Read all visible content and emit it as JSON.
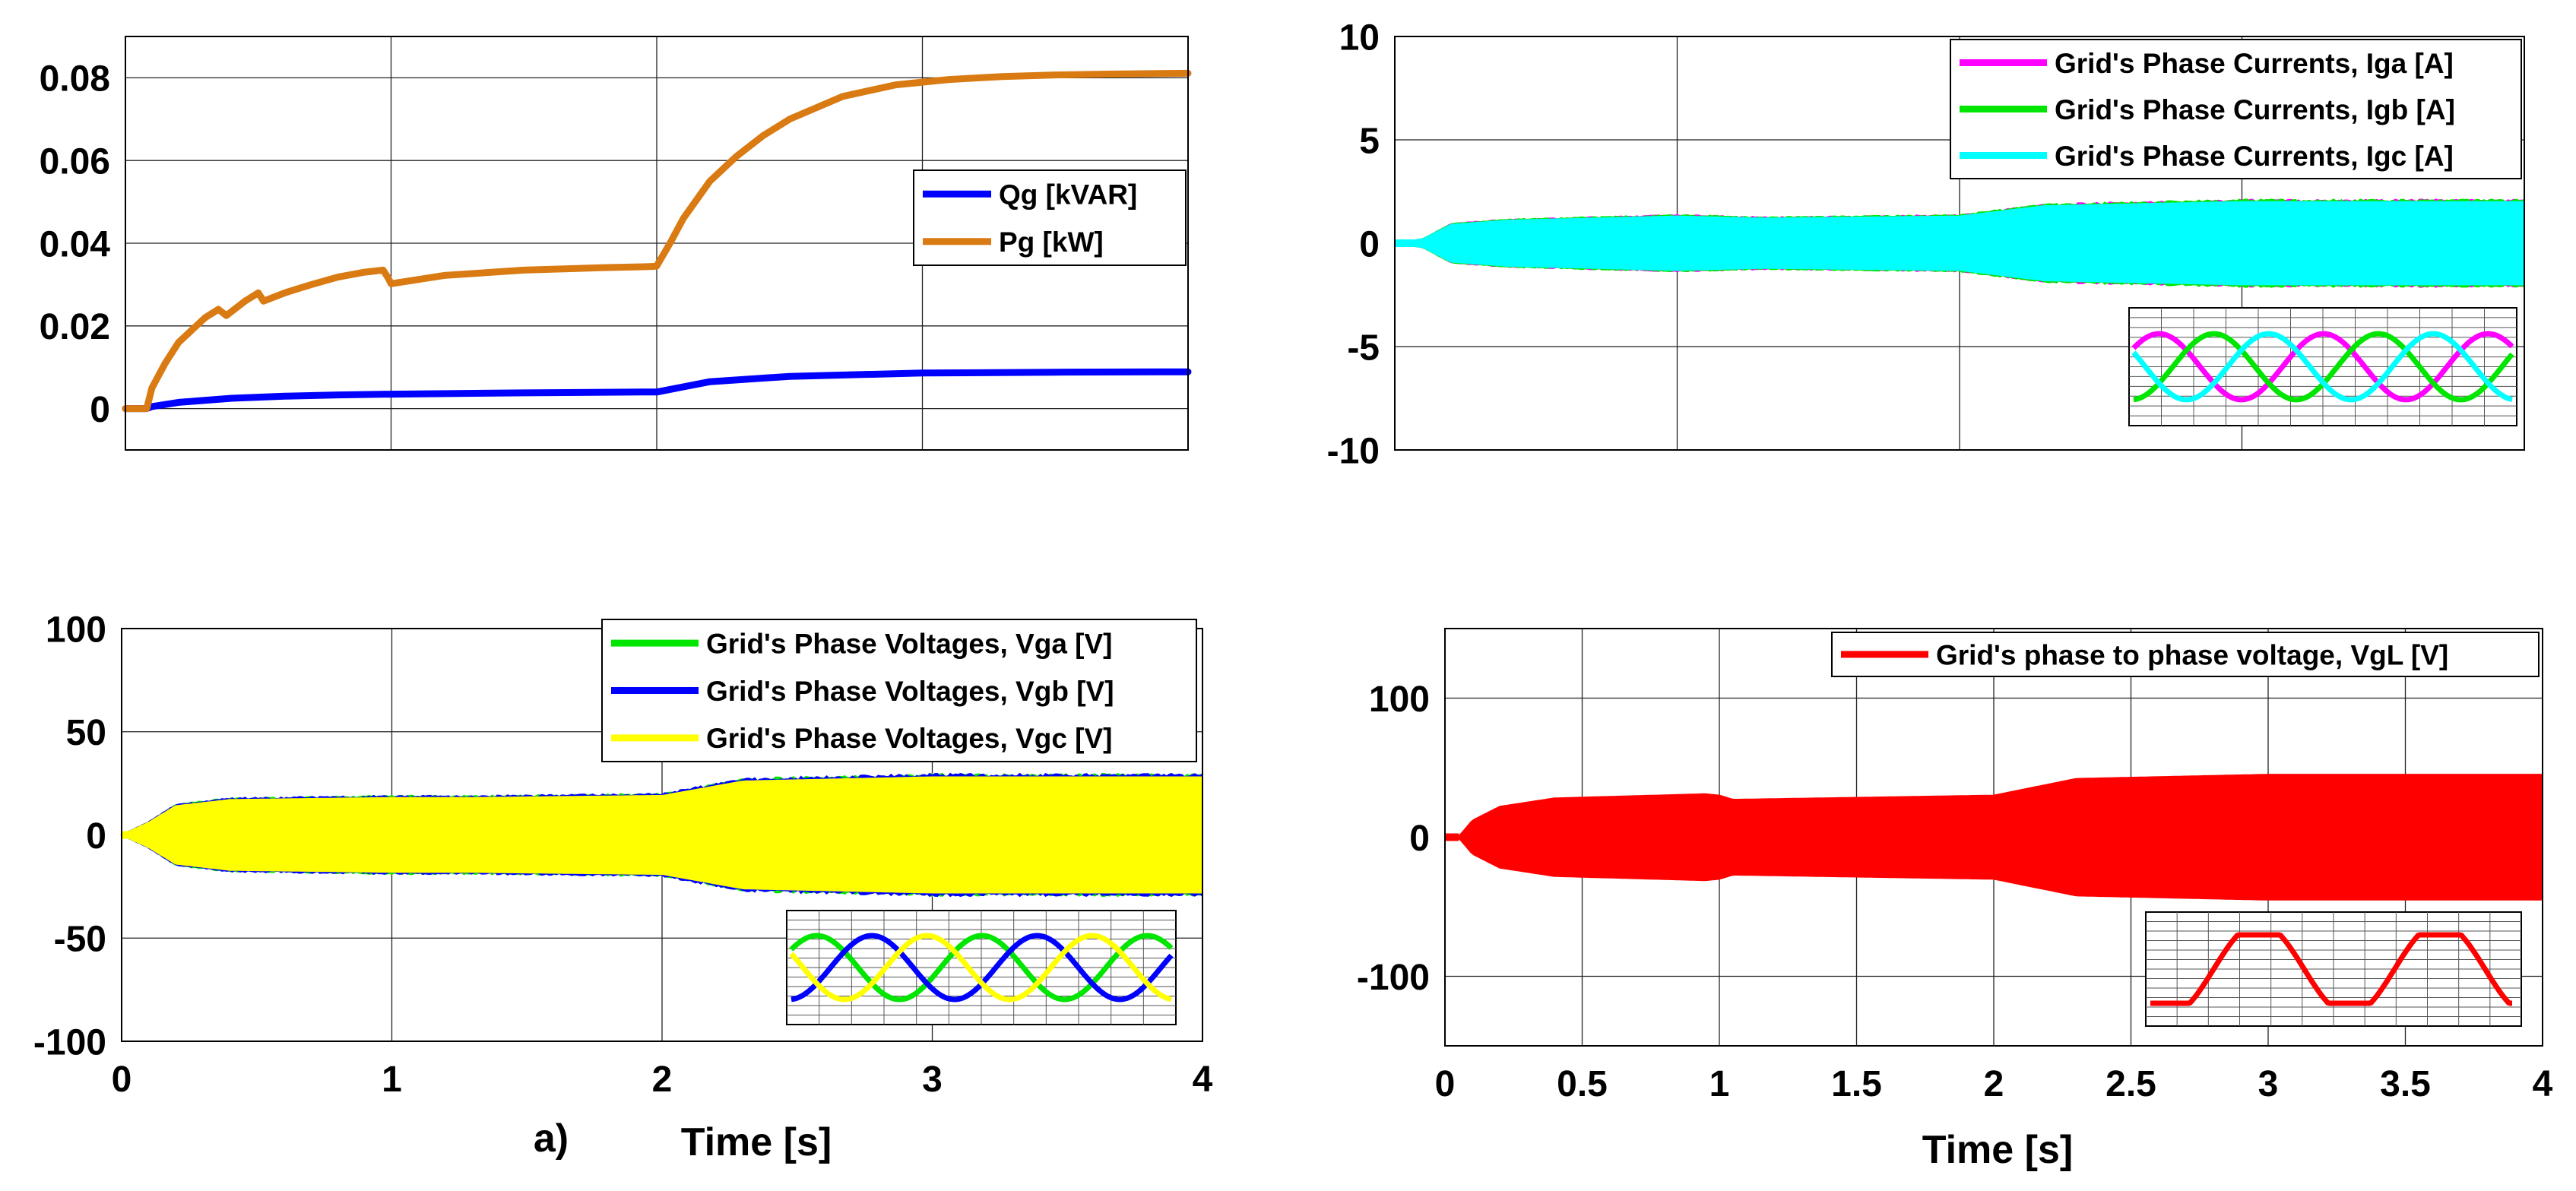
{
  "figure_label": "a)",
  "colors": {
    "qg": "#0000ff",
    "pg": "#d97a12",
    "iga": "#ff00ff",
    "igb": "#00e600",
    "igc": "#00ffff",
    "vga": "#00e600",
    "vgb": "#0000ff",
    "vgc": "#ffff00",
    "vgl": "#ff0000",
    "grid": "#222222"
  },
  "chart_data": [
    {
      "id": "power",
      "type": "line",
      "title": "",
      "xlabel": "",
      "ylabel": "",
      "xlim": [
        0,
        4
      ],
      "ylim": [
        -0.01,
        0.09
      ],
      "xticks": [
        0,
        1,
        2,
        3,
        4
      ],
      "xtick_labels": [
        "",
        "",
        "",
        "",
        ""
      ],
      "yticks": [
        0,
        0.02,
        0.04,
        0.06,
        0.08
      ],
      "ytick_labels": [
        "0",
        "0.02",
        "0.04",
        "0.06",
        "0.08"
      ],
      "grid": true,
      "legend_position": "center-right",
      "series": [
        {
          "name": "Qg [kVAR]",
          "color_key": "qg",
          "x": [
            0,
            0.08,
            0.1,
            0.2,
            0.4,
            0.6,
            0.8,
            1.0,
            1.5,
            1.95,
            2.0,
            2.2,
            2.5,
            3.0,
            3.5,
            4.0
          ],
          "y": [
            0,
            0,
            0.0005,
            0.0015,
            0.0025,
            0.003,
            0.0033,
            0.0035,
            0.0038,
            0.004,
            0.004,
            0.0065,
            0.0078,
            0.0086,
            0.0088,
            0.0089
          ]
        },
        {
          "name": "Pg [kW]",
          "color_key": "pg",
          "x": [
            0,
            0.08,
            0.1,
            0.15,
            0.2,
            0.3,
            0.35,
            0.38,
            0.45,
            0.5,
            0.52,
            0.6,
            0.7,
            0.8,
            0.9,
            0.97,
            0.99,
            1.0,
            1.2,
            1.5,
            1.8,
            1.95,
            1.99,
            2.0,
            2.05,
            2.1,
            2.2,
            2.3,
            2.4,
            2.5,
            2.7,
            2.9,
            3.1,
            3.3,
            3.5,
            3.7,
            4.0
          ],
          "y": [
            0,
            0,
            0.005,
            0.011,
            0.016,
            0.022,
            0.024,
            0.0225,
            0.026,
            0.028,
            0.026,
            0.028,
            0.03,
            0.0318,
            0.033,
            0.0335,
            0.0315,
            0.0302,
            0.0322,
            0.0335,
            0.0341,
            0.0343,
            0.0344,
            0.0345,
            0.04,
            0.046,
            0.055,
            0.061,
            0.066,
            0.07,
            0.0755,
            0.0783,
            0.0796,
            0.0803,
            0.0807,
            0.0809,
            0.0811
          ]
        }
      ]
    },
    {
      "id": "currents",
      "type": "line",
      "title": "",
      "xlabel": "",
      "ylabel": "",
      "xlim": [
        0,
        4
      ],
      "ylim": [
        -10,
        10
      ],
      "xticks": [
        0,
        1,
        2,
        3,
        4
      ],
      "xtick_labels": [
        "",
        "",
        "",
        "",
        ""
      ],
      "yticks": [
        -10,
        -5,
        0,
        5,
        10
      ],
      "ytick_labels": [
        "-10",
        "-5",
        "0",
        "5",
        "10"
      ],
      "grid": true,
      "legend_position": "top-right",
      "envelope": {
        "t": [
          0,
          0.1,
          0.2,
          0.4,
          1.0,
          1.3,
          2.0,
          2.3,
          3.0,
          4.0
        ],
        "amp": [
          0,
          0.2,
          0.9,
          1.1,
          1.3,
          1.2,
          1.3,
          1.8,
          2.0,
          2.0
        ]
      },
      "series": [
        {
          "name": "Grid's Phase Currents, Iga [A]",
          "color_key": "iga"
        },
        {
          "name": "Grid's Phase Currents, Igb [A]",
          "color_key": "igb"
        },
        {
          "name": "Grid's Phase Currents, Igc [A]",
          "color_key": "igc"
        }
      ],
      "inset": {
        "cycles": 2.3,
        "type": "three-phase sine"
      }
    },
    {
      "id": "voltages",
      "type": "line",
      "title": "",
      "xlabel": "Time [s]",
      "ylabel": "",
      "xlim": [
        0,
        4
      ],
      "ylim": [
        -100,
        100
      ],
      "xticks": [
        0,
        1,
        2,
        3,
        4
      ],
      "xtick_labels": [
        "0",
        "1",
        "2",
        "3",
        "4"
      ],
      "yticks": [
        -100,
        -50,
        0,
        50,
        100
      ],
      "ytick_labels": [
        "-100",
        "-50",
        "0",
        "50",
        "100"
      ],
      "grid": true,
      "legend_position": "top-right",
      "envelope": {
        "t": [
          0,
          0.1,
          0.2,
          0.4,
          1.0,
          1.3,
          2.0,
          2.3,
          3.0,
          4.0
        ],
        "amp": [
          0,
          6,
          14,
          17,
          18,
          18,
          19,
          26,
          28,
          28
        ]
      },
      "series": [
        {
          "name": "Grid's Phase Voltages, Vga [V]",
          "color_key": "vga"
        },
        {
          "name": "Grid's Phase Voltages, Vgb [V]",
          "color_key": "vgb"
        },
        {
          "name": "Grid's Phase Voltages, Vgc [V]",
          "color_key": "vgc"
        }
      ],
      "inset": {
        "cycles": 2.3,
        "type": "three-phase sine"
      }
    },
    {
      "id": "line_voltage",
      "type": "line",
      "title": "",
      "xlabel": "Time [s]",
      "ylabel": "",
      "xlim": [
        0,
        4
      ],
      "ylim": [
        -150,
        150
      ],
      "xticks": [
        0,
        0.5,
        1,
        1.5,
        2,
        2.5,
        3,
        3.5,
        4
      ],
      "xtick_labels": [
        "0",
        "0.5",
        "1",
        "1.5",
        "2",
        "2.5",
        "3",
        "3.5",
        "4"
      ],
      "yticks": [
        -100,
        0,
        100
      ],
      "ytick_labels": [
        "-100",
        "0",
        "100"
      ],
      "grid": true,
      "legend_position": "top-right",
      "envelope": {
        "t": [
          0,
          0.05,
          0.1,
          0.2,
          0.4,
          0.95,
          1.0,
          1.05,
          2.0,
          2.3,
          3.0,
          4.0
        ],
        "amp": [
          0,
          0.5,
          12,
          22,
          28,
          31,
          30,
          27,
          30,
          42,
          45,
          45
        ]
      },
      "series": [
        {
          "name": "Grid's phase to phase voltage, VgL [V]",
          "color_key": "vgl"
        }
      ],
      "inset": {
        "cycles": 2.0,
        "type": "clipped sine"
      }
    }
  ]
}
